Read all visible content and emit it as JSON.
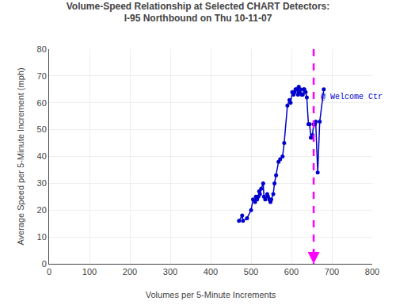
{
  "chart_data": {
    "type": "line",
    "title": "Volume-Speed Relationship at Selected CHART Detectors:",
    "subtitle": "I-95 Northbound on Thu 10-11-07",
    "xlabel": "Volumes per 5-Minute Increments",
    "ylabel": "Average Speed per 5-Minute Increment (mph)",
    "xlim": [
      0,
      800
    ],
    "ylim": [
      0,
      80
    ],
    "xticks": [
      0,
      100,
      200,
      300,
      400,
      500,
      600,
      700,
      800
    ],
    "yticks": [
      0,
      10,
      20,
      30,
      40,
      50,
      60,
      70,
      80
    ],
    "grid": true,
    "color": "#0000CC",
    "marker": "circle",
    "line_style": "solid",
    "x": [
      470,
      478,
      480,
      490,
      500,
      505,
      510,
      512,
      515,
      518,
      520,
      522,
      525,
      530,
      532,
      535,
      540,
      542,
      545,
      548,
      550,
      555,
      558,
      562,
      568,
      572,
      578,
      582,
      590,
      595,
      598,
      602,
      605,
      608,
      610,
      612,
      614,
      616,
      618,
      620,
      622,
      625,
      628,
      630,
      632,
      635,
      638,
      642,
      645,
      648,
      650,
      652,
      655,
      658,
      660,
      665,
      670,
      680
    ],
    "values": [
      16,
      18,
      16,
      17,
      20,
      24,
      23,
      25,
      24,
      25,
      27,
      26,
      28,
      30,
      25,
      24,
      26,
      25,
      24,
      23,
      24,
      26,
      30,
      33,
      38,
      39,
      40,
      45,
      59,
      61,
      60,
      64,
      63,
      64,
      65,
      65,
      65,
      63,
      66,
      64,
      65,
      63,
      63,
      65,
      65,
      64,
      62,
      52,
      52,
      47,
      47,
      48,
      52,
      52,
      53,
      34,
      53,
      65
    ],
    "vline": {
      "x": 655,
      "color": "#FF00FF",
      "line_style": "dashed"
    },
    "annotations": [
      {
        "text": "@ Welcome Ctr",
        "x": 668,
        "y": 62,
        "color": "#0000CC"
      }
    ]
  }
}
